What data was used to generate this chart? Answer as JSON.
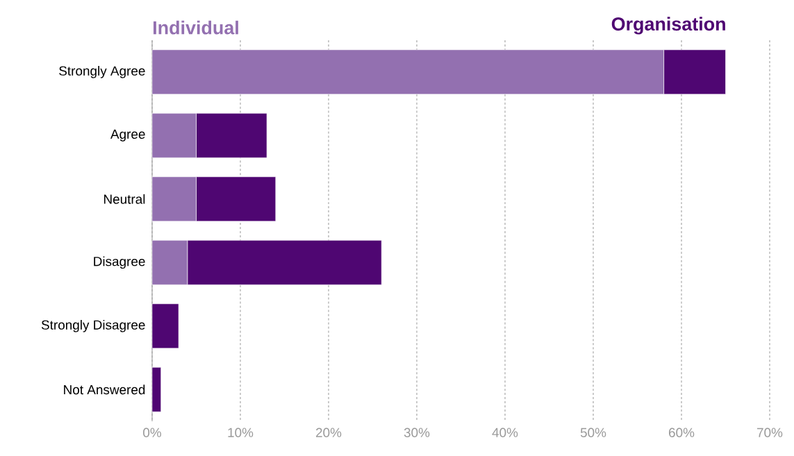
{
  "chart_data": {
    "type": "bar",
    "orientation": "horizontal",
    "stacked": true,
    "categories": [
      "Strongly Agree",
      "Agree",
      "Neutral",
      "Disagree",
      "Strongly Disagree",
      "Not Answered"
    ],
    "series": [
      {
        "name": "Individual",
        "color": "#9370b0",
        "values": [
          58,
          5,
          5,
          4,
          0,
          0
        ]
      },
      {
        "name": "Organisation",
        "color": "#4f0672",
        "values": [
          7,
          8,
          9,
          22,
          3,
          1
        ]
      }
    ],
    "xlim": [
      0,
      70
    ],
    "xticks": [
      {
        "value": 0,
        "label": "0%"
      },
      {
        "value": 10,
        "label": "10%"
      },
      {
        "value": 20,
        "label": "20%"
      },
      {
        "value": 30,
        "label": "30%"
      },
      {
        "value": 40,
        "label": "40%"
      },
      {
        "value": 50,
        "label": "50%"
      },
      {
        "value": 60,
        "label": "60%"
      },
      {
        "value": 70,
        "label": "70%"
      }
    ],
    "grid": "x"
  }
}
